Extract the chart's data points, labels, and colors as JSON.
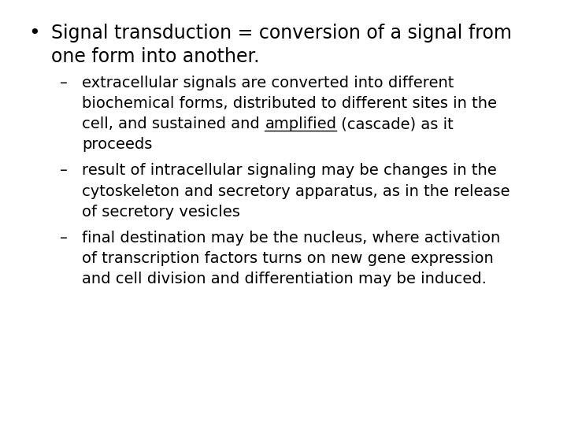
{
  "background_color": "#ffffff",
  "text_color": "#000000",
  "figsize": [
    7.2,
    5.4
  ],
  "dpi": 100,
  "bullet_fontsize": 17,
  "sub_fontsize": 14,
  "font_family": "DejaVu Sans",
  "bullet_line1": "Signal transduction = conversion of a signal from",
  "bullet_line2": "one form into another.",
  "sub_items": [
    {
      "lines": [
        "extracellular signals are converted into different",
        "biochemical forms, distributed to different sites in the",
        "cell, and sustained and «AMPLIFIED» (cascade) as it",
        "proceeds"
      ],
      "underline_before": "cell, and sustained and ",
      "underline_word": "amplified",
      "underline_after": " (cascade) as it"
    },
    {
      "lines": [
        "result of intracellular signaling may be changes in the",
        "cytoskeleton and secretory apparatus, as in the release",
        "of secretory vesicles"
      ],
      "underline_word": null
    },
    {
      "lines": [
        "final destination may be the nucleus, where activation",
        "of transcription factors turns on new gene expression",
        "and cell division and differentiation may be induced."
      ],
      "underline_word": null
    }
  ]
}
